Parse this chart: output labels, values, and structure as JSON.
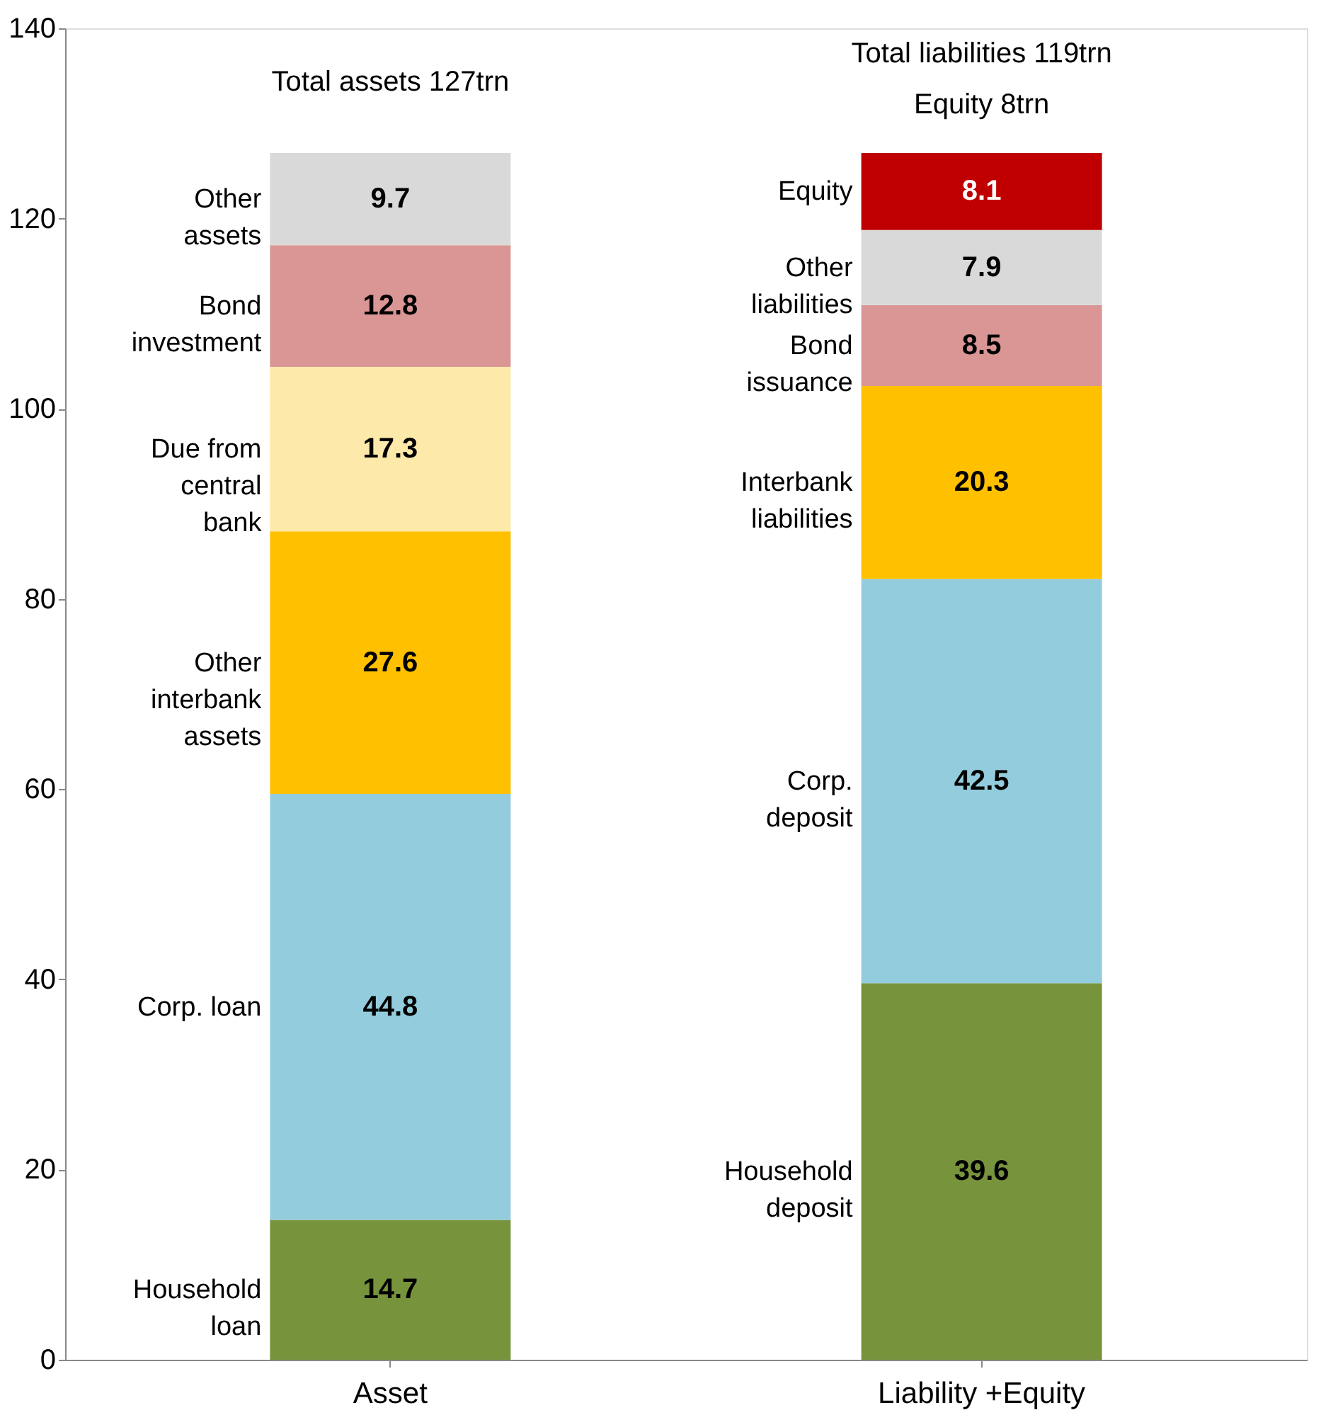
{
  "chart_data": {
    "type": "bar",
    "stacked": true,
    "categories": [
      "Asset",
      "Liability +Equity"
    ],
    "series": [
      {
        "name": "Household loan",
        "color": "#77933c",
        "values": [
          14.7,
          null
        ]
      },
      {
        "name": "Corp. loan",
        "color": "#93cddd",
        "values": [
          44.8,
          null
        ]
      },
      {
        "name": "Other interbank assets",
        "color": "#ffc000",
        "values": [
          27.6,
          null
        ]
      },
      {
        "name": "Due from central bank",
        "color": "#fde9a9",
        "values": [
          17.3,
          null
        ]
      },
      {
        "name": "Bond investment",
        "color": "#d99694",
        "values": [
          12.8,
          null
        ]
      },
      {
        "name": "Other assets",
        "color": "#d9d9d9",
        "values": [
          9.7,
          null
        ]
      },
      {
        "name": "Household deposit",
        "color": "#77933c",
        "values": [
          null,
          39.6
        ]
      },
      {
        "name": "Corp. deposit",
        "color": "#93cddd",
        "values": [
          null,
          42.5
        ]
      },
      {
        "name": "Interbank liabilities",
        "color": "#ffc000",
        "values": [
          null,
          20.3
        ]
      },
      {
        "name": "Bond issuance",
        "color": "#d99694",
        "values": [
          null,
          8.5
        ]
      },
      {
        "name": "Other liabilities",
        "color": "#d9d9d9",
        "values": [
          null,
          7.9
        ]
      },
      {
        "name": "Equity",
        "color": "#c00000",
        "values": [
          null,
          8.1
        ]
      }
    ],
    "ylim": [
      0,
      140
    ],
    "yticks": [
      0,
      20,
      40,
      60,
      80,
      100,
      120,
      140
    ],
    "data_labels": true,
    "grid": false,
    "annotations": [
      "Total assets 127trn",
      "Total liabilities 119trn",
      "Equity  8trn"
    ]
  }
}
